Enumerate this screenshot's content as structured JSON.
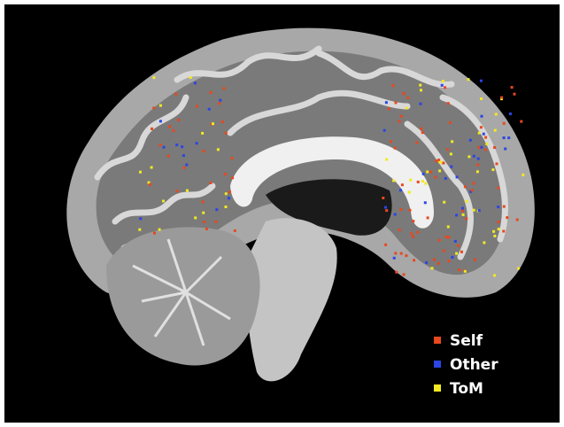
{
  "legend": [
    {
      "label": "Self",
      "color": "#e8481e"
    },
    {
      "label": "Other",
      "color": "#2b45e6"
    },
    {
      "label": "ToM",
      "color": "#f2ea1e"
    }
  ]
}
